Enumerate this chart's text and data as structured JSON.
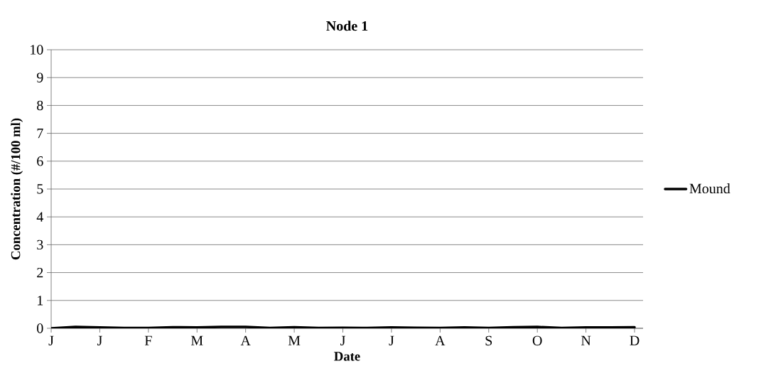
{
  "chart_data": {
    "type": "line",
    "title": "Node 1",
    "xlabel": "Date",
    "ylabel": "Concentration (#/100 ml)",
    "categories": [
      "J",
      null,
      "J",
      null,
      "F",
      null,
      "M",
      null,
      "A",
      null,
      "M",
      null,
      "J",
      null,
      "J",
      null,
      "A",
      null,
      "S",
      null,
      "O",
      null,
      "N",
      null,
      "D"
    ],
    "ylim": [
      0,
      10
    ],
    "yticks": [
      0,
      1,
      2,
      3,
      4,
      5,
      6,
      7,
      8,
      9,
      10
    ],
    "grid": "y",
    "legend": "right",
    "marker": "none",
    "line_style": "solid",
    "series": [
      {
        "name": "Mound",
        "color": "#000000",
        "values": [
          0,
          0.05,
          0.03,
          0.01,
          0.01,
          0.04,
          0.03,
          0.05,
          0.05,
          0.01,
          0.04,
          0.01,
          0.02,
          0.01,
          0.03,
          0.02,
          0.01,
          0.03,
          0.01,
          0.04,
          0.05,
          0.01,
          0.03,
          0.03,
          0.04
        ]
      }
    ]
  }
}
